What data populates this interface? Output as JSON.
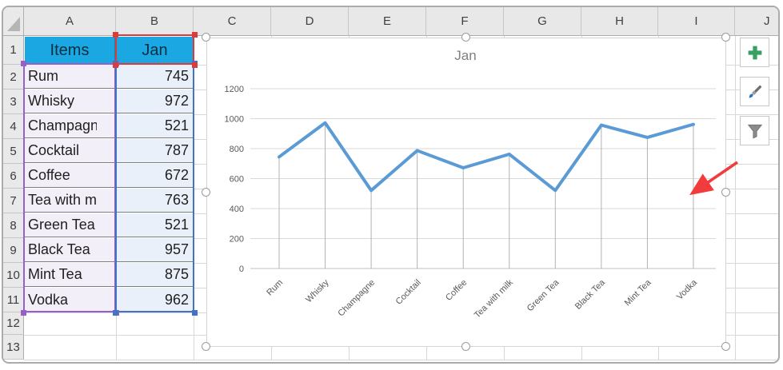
{
  "sheet": {
    "col_letters": [
      "A",
      "B",
      "C",
      "D",
      "E",
      "F",
      "G",
      "H",
      "I",
      "J"
    ],
    "row_numbers": [
      "1",
      "2",
      "3",
      "4",
      "5",
      "6",
      "7",
      "8",
      "9",
      "10",
      "11",
      "12",
      "13"
    ],
    "table": {
      "header_item": "Items",
      "header_value": "Jan",
      "rows": [
        {
          "item": "Rum",
          "value": "745"
        },
        {
          "item": "Whisky",
          "value": "972"
        },
        {
          "item": "Champagne",
          "value": "521"
        },
        {
          "item": "Cocktail",
          "value": "787"
        },
        {
          "item": "Coffee",
          "value": "672"
        },
        {
          "item": "Tea with milk",
          "value": "763"
        },
        {
          "item": "Green Tea",
          "value": "521"
        },
        {
          "item": "Black Tea",
          "value": "957"
        },
        {
          "item": "Mint Tea",
          "value": "875"
        },
        {
          "item": "Vodka",
          "value": "962"
        }
      ]
    }
  },
  "chart_data": {
    "type": "line",
    "title": "Jan",
    "categories": [
      "Rum",
      "Whisky",
      "Champagne",
      "Cocktail",
      "Coffee",
      "Tea with milk",
      "Green Tea",
      "Black Tea",
      "Mint Tea",
      "Vodka"
    ],
    "series": [
      {
        "name": "Jan",
        "values": [
          745,
          972,
          521,
          787,
          672,
          763,
          521,
          957,
          875,
          962
        ]
      }
    ],
    "ylim": [
      0,
      1200
    ],
    "yticks": [
      0,
      200,
      400,
      600,
      800,
      1000,
      1200
    ],
    "grid": "horizontal-major-plus-category-drop-lines",
    "legend": "none",
    "xlabel": "",
    "ylabel": ""
  },
  "chart_tools": {
    "elements_icon": "plus-icon",
    "styles_icon": "paintbrush-icon",
    "filters_icon": "funnel-icon"
  },
  "colors": {
    "table_header_fill": "#1ba7e1",
    "item_cell_fill": "#f2eff8",
    "value_cell_fill": "#eaf0f9",
    "series_line": "#5b9bd5",
    "sel_red": "#dd3b3b",
    "sel_purple": "#9760c8",
    "sel_blue": "#4472c4",
    "grid_major": "#d9d9d9",
    "drop_line": "#b3b3b3",
    "axis_text": "#595959",
    "chart_title_text": "#7f7f7f",
    "plus_green": "#37a163",
    "arrow_red": "#f23b3b"
  }
}
